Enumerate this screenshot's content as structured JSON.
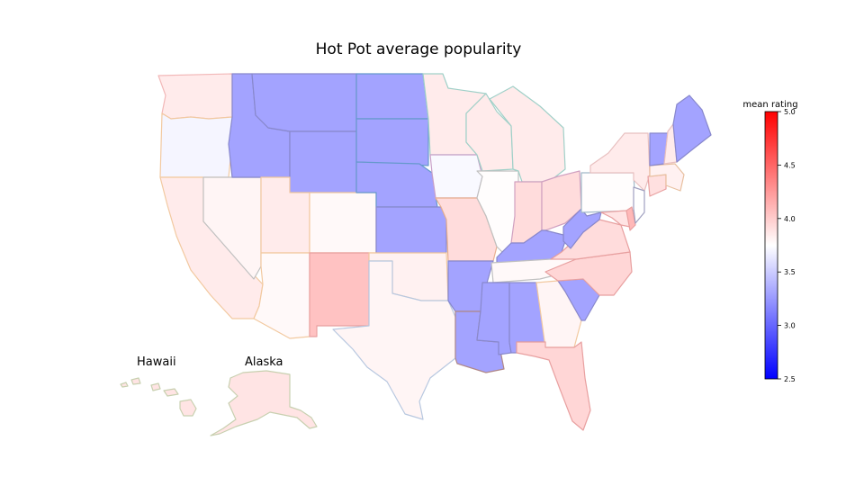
{
  "title": "Hot Pot average popularity",
  "insets": {
    "hawaii_label": "Hawaii",
    "alaska_label": "Alaska"
  },
  "colorbar": {
    "label": "mean rating",
    "min": 2.5,
    "max": 5.0,
    "mid": 3.75,
    "ticks": [
      "5.0",
      "4.5",
      "4.0",
      "3.5",
      "3.0",
      "2.5"
    ],
    "colors": {
      "low": "#0000ff",
      "mid": "#ffffff",
      "high": "#ff0000"
    }
  },
  "states": [
    {
      "id": "WA",
      "rating": 3.85,
      "edge": "#f2b8b8"
    },
    {
      "id": "OR",
      "rating": 3.7,
      "edge": "#f2c9a0"
    },
    {
      "id": "CA",
      "rating": 3.85,
      "edge": "#f2c9a0"
    },
    {
      "id": "NV",
      "rating": 3.8,
      "edge": "#c0c0c0"
    },
    {
      "id": "ID",
      "rating": 3.3,
      "edge": "#8888cc"
    },
    {
      "id": "MT",
      "rating": 3.3,
      "edge": "#8888cc"
    },
    {
      "id": "WY",
      "rating": 3.3,
      "edge": "#8888cc"
    },
    {
      "id": "UT",
      "rating": 3.85,
      "edge": "#f2c9a0"
    },
    {
      "id": "AZ",
      "rating": 3.78,
      "edge": "#f2c9a0"
    },
    {
      "id": "CO",
      "rating": 3.78,
      "edge": "#f2c9a0"
    },
    {
      "id": "NM",
      "rating": 4.05,
      "edge": "#e8a0a0"
    },
    {
      "id": "ND",
      "rating": 3.3,
      "edge": "#6699cc"
    },
    {
      "id": "SD",
      "rating": 3.3,
      "edge": "#6699cc"
    },
    {
      "id": "NE",
      "rating": 3.3,
      "edge": "#6699cc"
    },
    {
      "id": "KS",
      "rating": 3.3,
      "edge": "#8888cc"
    },
    {
      "id": "OK",
      "rating": 3.82,
      "edge": "#f2c9a0"
    },
    {
      "id": "TX",
      "rating": 3.8,
      "edge": "#b8c8e0"
    },
    {
      "id": "MN",
      "rating": 3.85,
      "edge": "#a0d0c8"
    },
    {
      "id": "IA",
      "rating": 3.72,
      "edge": "#c8a0c8"
    },
    {
      "id": "MO",
      "rating": 3.92,
      "edge": "#e8b090"
    },
    {
      "id": "AR",
      "rating": 3.3,
      "edge": "#8888cc"
    },
    {
      "id": "LA",
      "rating": 3.3,
      "edge": "#b08888"
    },
    {
      "id": "WI",
      "rating": 3.85,
      "edge": "#a0d0c8"
    },
    {
      "id": "IL",
      "rating": 3.76,
      "edge": "#c0c0c0"
    },
    {
      "id": "MI",
      "rating": 3.85,
      "edge": "#a0d0c8"
    },
    {
      "id": "IN",
      "rating": 3.92,
      "edge": "#d0a0c0"
    },
    {
      "id": "OH",
      "rating": 3.92,
      "edge": "#d0a0c0"
    },
    {
      "id": "KY",
      "rating": 3.3,
      "edge": "#8888cc"
    },
    {
      "id": "TN",
      "rating": 3.78,
      "edge": "#c0c0c0"
    },
    {
      "id": "MS",
      "rating": 3.3,
      "edge": "#8888cc"
    },
    {
      "id": "AL",
      "rating": 3.3,
      "edge": "#8888cc"
    },
    {
      "id": "GA",
      "rating": 3.8,
      "edge": "#f2c9a0"
    },
    {
      "id": "FL",
      "rating": 3.95,
      "edge": "#e8a0a0"
    },
    {
      "id": "SC",
      "rating": 3.3,
      "edge": "#8888cc"
    },
    {
      "id": "NC",
      "rating": 3.95,
      "edge": "#e8a0a0"
    },
    {
      "id": "VA",
      "rating": 3.92,
      "edge": "#e8a0a0"
    },
    {
      "id": "WV",
      "rating": 3.3,
      "edge": "#8888cc"
    },
    {
      "id": "PA",
      "rating": 3.76,
      "edge": "#a0b8c8"
    },
    {
      "id": "NY",
      "rating": 3.85,
      "edge": "#e8c0c0"
    },
    {
      "id": "MD",
      "rating": 3.88,
      "edge": "#e8a0a0"
    },
    {
      "id": "DE",
      "rating": 4.1,
      "edge": "#e8a0a0"
    },
    {
      "id": "NJ",
      "rating": 3.75,
      "edge": "#a0a0c0"
    },
    {
      "id": "CT",
      "rating": 3.9,
      "edge": "#e8a0a0"
    },
    {
      "id": "MA",
      "rating": 3.82,
      "edge": "#e8c0a0"
    },
    {
      "id": "VT",
      "rating": 3.3,
      "edge": "#8888cc"
    },
    {
      "id": "NH",
      "rating": 3.85,
      "edge": "#e8c0c0"
    },
    {
      "id": "ME",
      "rating": 3.3,
      "edge": "#8888cc"
    },
    {
      "id": "AK",
      "rating": 3.88,
      "edge": "#c8d0b0"
    },
    {
      "id": "HI",
      "rating": 3.88,
      "edge": "#c8d0b0"
    }
  ]
}
